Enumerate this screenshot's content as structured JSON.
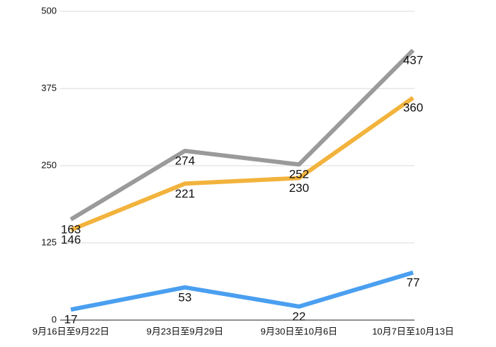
{
  "chart_data": {
    "type": "line",
    "categories": [
      "9月16日至9月22日",
      "9月23日至9月29日",
      "9月30日至10月6日",
      "10月7日至10月13日"
    ],
    "series": [
      {
        "color": "#4a9ff0",
        "values": [
          17,
          53,
          22,
          77
        ]
      },
      {
        "color": "#f2b33d",
        "values": [
          146,
          221,
          230,
          360
        ]
      },
      {
        "color": "#9a9a9a",
        "values": [
          163,
          274,
          252,
          437
        ]
      }
    ],
    "ylim": [
      0,
      500
    ],
    "yticks": [
      0,
      125,
      250,
      375,
      500
    ],
    "grid": true
  }
}
